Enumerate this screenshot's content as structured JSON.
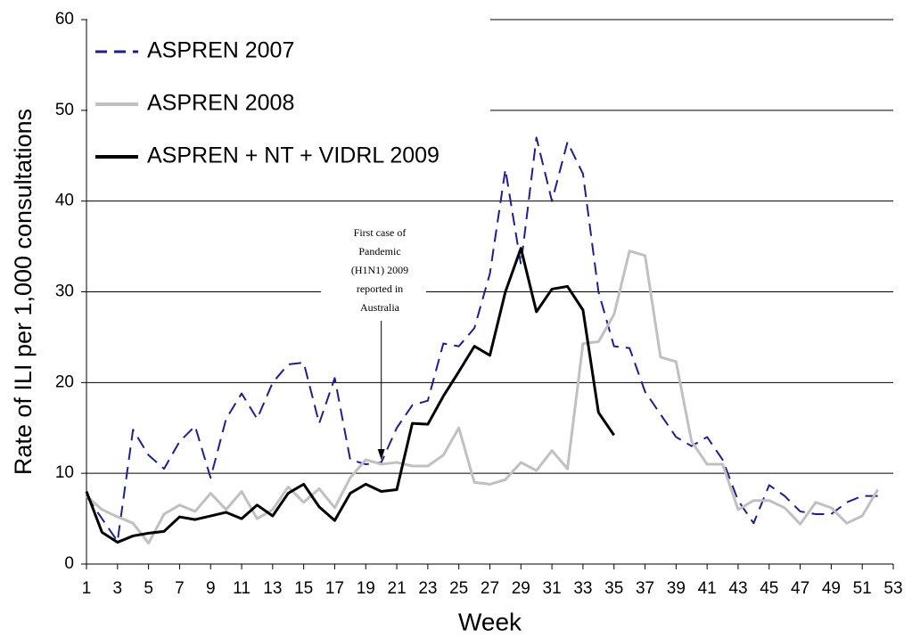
{
  "chart_data": {
    "type": "line",
    "x_label": "Week",
    "y_label": "Rate of ILI per 1,000 consultations",
    "annotation": [
      "First case of",
      "Pandemic",
      "(H1N1) 2009",
      "reported in",
      "Australia"
    ],
    "x": [
      1,
      2,
      3,
      4,
      5,
      6,
      7,
      8,
      9,
      10,
      11,
      12,
      13,
      14,
      15,
      16,
      17,
      18,
      19,
      20,
      21,
      22,
      23,
      24,
      25,
      26,
      27,
      28,
      29,
      30,
      31,
      32,
      33,
      34,
      35,
      36,
      37,
      38,
      39,
      40,
      41,
      42,
      43,
      44,
      45,
      46,
      47,
      48,
      49,
      50,
      51,
      52
    ],
    "series": [
      {
        "name": "ASPREN 2007",
        "color": "#1f1f8c",
        "dash": true,
        "values": [
          7.5,
          5,
          2.5,
          14.8,
          12,
          10.5,
          13.5,
          15.2,
          9.5,
          16,
          18.8,
          16,
          20,
          22,
          22.2,
          15.5,
          20.5,
          11.5,
          11,
          11.2,
          15,
          17.5,
          18,
          24.3,
          24,
          26,
          32,
          43.5,
          33,
          47,
          40,
          46.5,
          43,
          30,
          24,
          23.8,
          19,
          16.5,
          14,
          13,
          14,
          11.5,
          7,
          4.5,
          8.7,
          7.5,
          5.8,
          5.5,
          5.5,
          6.8,
          7.5,
          7.5
        ]
      },
      {
        "name": "ASPREN 2008",
        "color": "#c0c0c0",
        "dash": false,
        "values": [
          7.5,
          6,
          5.2,
          4.5,
          2.3,
          5.5,
          6.5,
          5.8,
          7.8,
          6,
          8,
          5,
          6,
          8.5,
          6.8,
          8.3,
          6.2,
          9.5,
          11.5,
          11,
          11.2,
          10.8,
          10.8,
          12,
          15,
          9,
          8.8,
          9.3,
          11.2,
          10.3,
          12.5,
          10.5,
          24.3,
          24.5,
          27.5,
          34.5,
          34,
          22.8,
          22.3,
          13.5,
          11,
          11,
          6,
          7,
          7,
          6.2,
          4.4,
          6.8,
          6.2,
          4.5,
          5.3,
          8.2
        ]
      },
      {
        "name": "ASPREN + NT + VIDRL 2009",
        "color": "#000000",
        "dash": false,
        "values": [
          8,
          3.5,
          2.4,
          3.1,
          3.4,
          3.6,
          5.2,
          4.9,
          5.3,
          5.7,
          5,
          6.5,
          5.3,
          7.8,
          8.8,
          6.3,
          4.8,
          7.8,
          8.8,
          8,
          8.2,
          15.5,
          15.4,
          18.5,
          21.2,
          24,
          23,
          30,
          34.8,
          27.8,
          30.3,
          30.6,
          28,
          16.7,
          14.2,
          null,
          null,
          null,
          null,
          null,
          null,
          null,
          null,
          null,
          null,
          null,
          null,
          null,
          null,
          null,
          null,
          null
        ]
      }
    ],
    "xlim": [
      1,
      53
    ],
    "xticks": [
      1,
      3,
      5,
      7,
      9,
      11,
      13,
      15,
      17,
      19,
      21,
      23,
      25,
      27,
      29,
      31,
      33,
      35,
      37,
      39,
      41,
      43,
      45,
      47,
      49,
      51,
      53
    ],
    "ylim": [
      0,
      60
    ],
    "yticks": [
      0,
      10,
      20,
      30,
      40,
      50,
      60
    ],
    "grid": true,
    "legend": "top-left"
  }
}
